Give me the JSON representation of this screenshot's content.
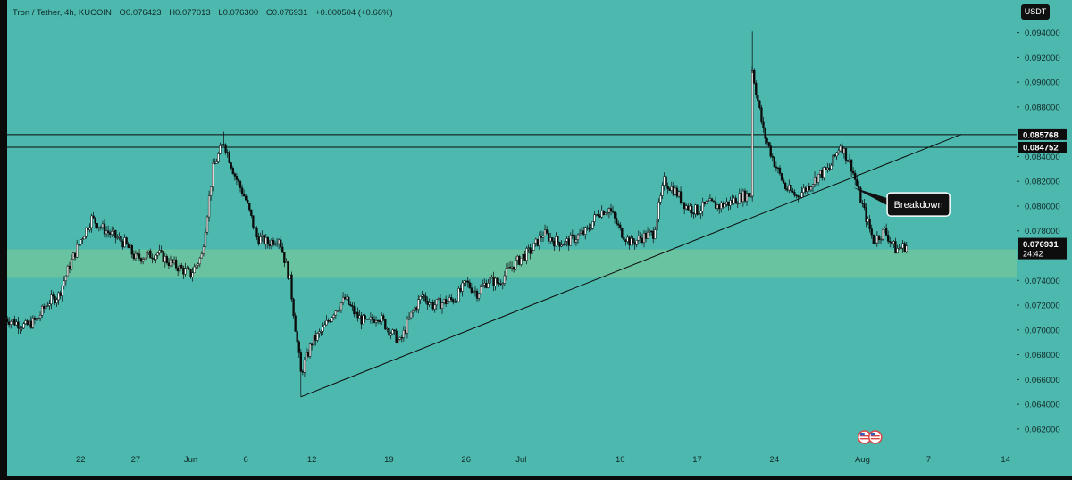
{
  "header": {
    "symbol": "Tron / Tether, 4h, KUCOIN",
    "open": "O0.076423",
    "high": "H0.077013",
    "low": "L0.076300",
    "close": "C0.076931",
    "change": "+0.000504 (+0.66%)"
  },
  "currency_button": "USDT",
  "colors": {
    "background": "#4db8ae",
    "zone": "#6ec49d",
    "candle": "#0b0b0b",
    "label_bg": "#111111"
  },
  "chart_data": {
    "type": "candlestick",
    "timeframe": "4h",
    "y_axis": {
      "min": 0.0612,
      "max": 0.0957,
      "ticks": [
        0.062,
        0.064,
        0.066,
        0.068,
        0.07,
        0.072,
        0.074,
        0.078,
        0.08,
        0.082,
        0.084,
        0.088,
        0.09,
        0.092,
        0.094
      ],
      "tick_labels": [
        "0.062000",
        "0.064000",
        "0.066000",
        "0.068000",
        "0.070000",
        "0.072000",
        "0.074000",
        "0.078000",
        "0.080000",
        "0.082000",
        "0.084000",
        "0.088000",
        "0.090000",
        "0.092000",
        "0.094000"
      ]
    },
    "x_axis": {
      "start": "2023-05-15",
      "end": "2023-08-15",
      "ticks": [
        {
          "date": "2023-05-22",
          "label": "22"
        },
        {
          "date": "2023-05-27",
          "label": "27"
        },
        {
          "date": "2023-06-01",
          "label": "Jun"
        },
        {
          "date": "2023-06-06",
          "label": "6"
        },
        {
          "date": "2023-06-12",
          "label": "12"
        },
        {
          "date": "2023-06-19",
          "label": "19"
        },
        {
          "date": "2023-06-26",
          "label": "26"
        },
        {
          "date": "2023-07-01",
          "label": "Jul"
        },
        {
          "date": "2023-07-10",
          "label": "10"
        },
        {
          "date": "2023-07-17",
          "label": "17"
        },
        {
          "date": "2023-07-24",
          "label": "24"
        },
        {
          "date": "2023-08-01",
          "label": "Aug"
        },
        {
          "date": "2023-08-07",
          "label": "7"
        },
        {
          "date": "2023-08-14",
          "label": "14"
        }
      ]
    },
    "path": [
      [
        "2023-05-15",
        0.071
      ],
      [
        "2023-05-17",
        0.0703
      ],
      [
        "2023-05-18",
        0.0708
      ],
      [
        "2023-05-19",
        0.0722
      ],
      [
        "2023-05-20",
        0.0728
      ],
      [
        "2023-05-21",
        0.0752
      ],
      [
        "2023-05-22",
        0.0773
      ],
      [
        "2023-05-23",
        0.079
      ],
      [
        "2023-05-24",
        0.0782
      ],
      [
        "2023-05-26",
        0.077
      ],
      [
        "2023-05-27",
        0.0758
      ],
      [
        "2023-05-29",
        0.0762
      ],
      [
        "2023-05-30",
        0.0755
      ],
      [
        "2023-06-01",
        0.0745
      ],
      [
        "2023-06-02",
        0.076
      ],
      [
        "2023-06-03",
        0.083
      ],
      [
        "2023-06-04",
        0.0852
      ],
      [
        "2023-06-05",
        0.0825
      ],
      [
        "2023-06-06",
        0.0805
      ],
      [
        "2023-06-07",
        0.0775
      ],
      [
        "2023-06-08",
        0.077
      ],
      [
        "2023-06-09",
        0.0775
      ],
      [
        "2023-06-10",
        0.074
      ],
      [
        "2023-06-11",
        0.0665
      ],
      [
        "2023-06-12",
        0.069
      ],
      [
        "2023-06-13",
        0.07
      ],
      [
        "2023-06-14",
        0.0715
      ],
      [
        "2023-06-15",
        0.0725
      ],
      [
        "2023-06-16",
        0.0712
      ],
      [
        "2023-06-17",
        0.0705
      ],
      [
        "2023-06-18",
        0.0712
      ],
      [
        "2023-06-19",
        0.07
      ],
      [
        "2023-06-20",
        0.069
      ],
      [
        "2023-06-21",
        0.0712
      ],
      [
        "2023-06-22",
        0.0728
      ],
      [
        "2023-06-23",
        0.072
      ],
      [
        "2023-06-25",
        0.0725
      ],
      [
        "2023-06-26",
        0.0738
      ],
      [
        "2023-06-27",
        0.073
      ],
      [
        "2023-06-28",
        0.074
      ],
      [
        "2023-06-29",
        0.0738
      ],
      [
        "2023-06-30",
        0.075
      ],
      [
        "2023-07-01",
        0.0758
      ],
      [
        "2023-07-02",
        0.0765
      ],
      [
        "2023-07-03",
        0.0778
      ],
      [
        "2023-07-04",
        0.0772
      ],
      [
        "2023-07-05",
        0.077
      ],
      [
        "2023-07-07",
        0.078
      ],
      [
        "2023-07-08",
        0.0795
      ],
      [
        "2023-07-09",
        0.0798
      ],
      [
        "2023-07-10",
        0.078
      ],
      [
        "2023-07-11",
        0.077
      ],
      [
        "2023-07-12",
        0.0775
      ],
      [
        "2023-07-13",
        0.0778
      ],
      [
        "2023-07-14",
        0.082
      ],
      [
        "2023-07-15",
        0.0812
      ],
      [
        "2023-07-16",
        0.08
      ],
      [
        "2023-07-17",
        0.0796
      ],
      [
        "2023-07-18",
        0.0802
      ],
      [
        "2023-07-19",
        0.08
      ],
      [
        "2023-07-20",
        0.0803
      ],
      [
        "2023-07-21",
        0.0808
      ],
      [
        "2023-07-22",
        0.081
      ],
      [
        "2023-07-22",
        0.091
      ],
      [
        "2023-07-23",
        0.086
      ],
      [
        "2023-07-24",
        0.0835
      ],
      [
        "2023-07-25",
        0.0815
      ],
      [
        "2023-07-26",
        0.0808
      ],
      [
        "2023-07-27",
        0.0815
      ],
      [
        "2023-07-28",
        0.0825
      ],
      [
        "2023-07-29",
        0.083
      ],
      [
        "2023-07-30",
        0.085
      ],
      [
        "2023-07-31",
        0.0832
      ],
      [
        "2023-08-01",
        0.08
      ],
      [
        "2023-08-02",
        0.0772
      ],
      [
        "2023-08-03",
        0.078
      ],
      [
        "2023-08-04",
        0.0765
      ],
      [
        "2023-08-05",
        0.0768
      ]
    ],
    "wick_extremes": [
      {
        "date": "2023-06-04",
        "high": 0.086
      },
      {
        "date": "2023-06-11",
        "low": 0.0646
      },
      {
        "date": "2023-07-22",
        "high": 0.0941
      }
    ],
    "horizontal_levels": [
      {
        "value": 0.085768,
        "label": "0.085768"
      },
      {
        "value": 0.084752,
        "label": "0.084752"
      }
    ],
    "zone": {
      "from": 0.0742,
      "to": 0.0765
    },
    "trendline": {
      "start": [
        "2023-06-11",
        0.0646
      ],
      "end": [
        "2023-08-10",
        0.0858
      ]
    },
    "annotation": {
      "text": "Breakdown",
      "date": "2023-07-31",
      "value": 0.0815
    },
    "last_price": {
      "value": 0.076931,
      "label": "0.076931",
      "countdown": "24:42"
    }
  }
}
